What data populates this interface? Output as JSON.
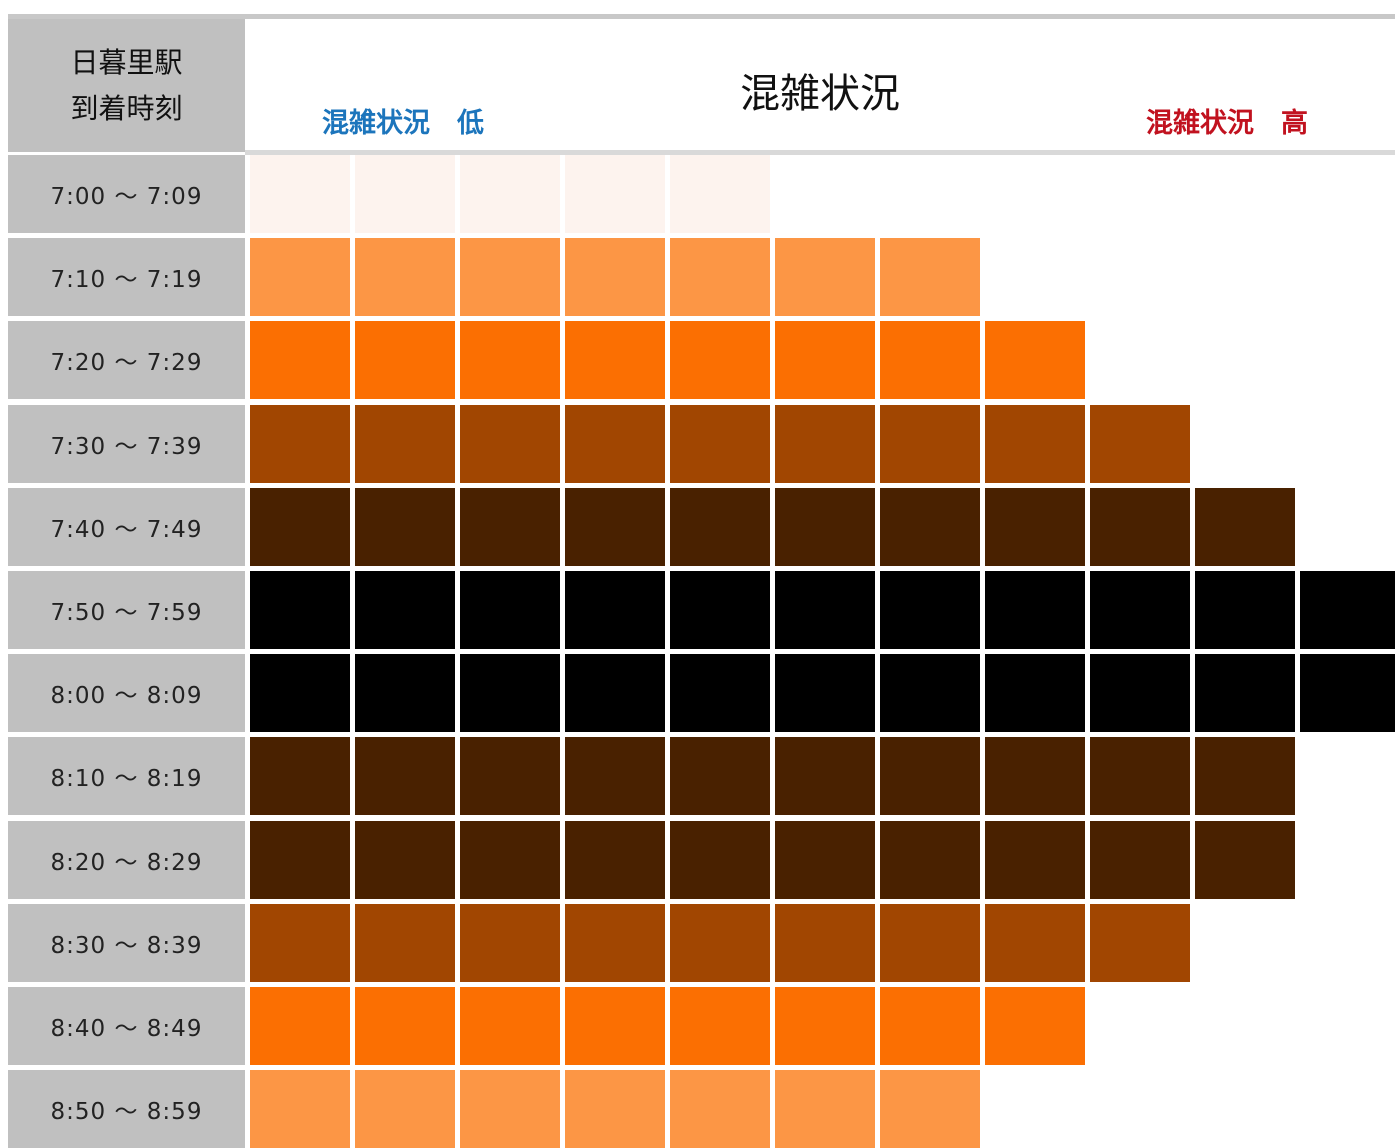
{
  "header": {
    "corner_line1": "日暮里駅",
    "corner_line2": "到着時刻",
    "title": "混雑状況",
    "low_label": "混雑状況　低",
    "high_label": "混雑状況　高"
  },
  "colors": {
    "level_1": "#fdf3ee",
    "level_2": "#fc9645",
    "level_3": "#fb6f02",
    "level_4": "#a14601",
    "level_5": "#492100",
    "level_6": "#000000",
    "empty": "#ffffff",
    "label_bg": "#c0c0c0",
    "low_text": "#1c75bc",
    "high_text": "#c1121f"
  },
  "chart_data": {
    "type": "heatmap",
    "max_level": 11,
    "rows": [
      {
        "time": "7:00 ～ 7:09",
        "level": 5,
        "color": "level_1"
      },
      {
        "time": "7:10 ～ 7:19",
        "level": 7,
        "color": "level_2"
      },
      {
        "time": "7:20 ～ 7:29",
        "level": 8,
        "color": "level_3"
      },
      {
        "time": "7:30 ～ 7:39",
        "level": 9,
        "color": "level_4"
      },
      {
        "time": "7:40 ～ 7:49",
        "level": 10,
        "color": "level_5"
      },
      {
        "time": "7:50 ～ 7:59",
        "level": 11,
        "color": "level_6"
      },
      {
        "time": "8:00 ～ 8:09",
        "level": 11,
        "color": "level_6"
      },
      {
        "time": "8:10 ～ 8:19",
        "level": 10,
        "color": "level_5"
      },
      {
        "time": "8:20 ～ 8:29",
        "level": 10,
        "color": "level_5"
      },
      {
        "time": "8:30 ～ 8:39",
        "level": 9,
        "color": "level_4"
      },
      {
        "time": "8:40 ～ 8:49",
        "level": 8,
        "color": "level_3"
      },
      {
        "time": "8:50 ～ 8:59",
        "level": 7,
        "color": "level_2"
      }
    ]
  }
}
